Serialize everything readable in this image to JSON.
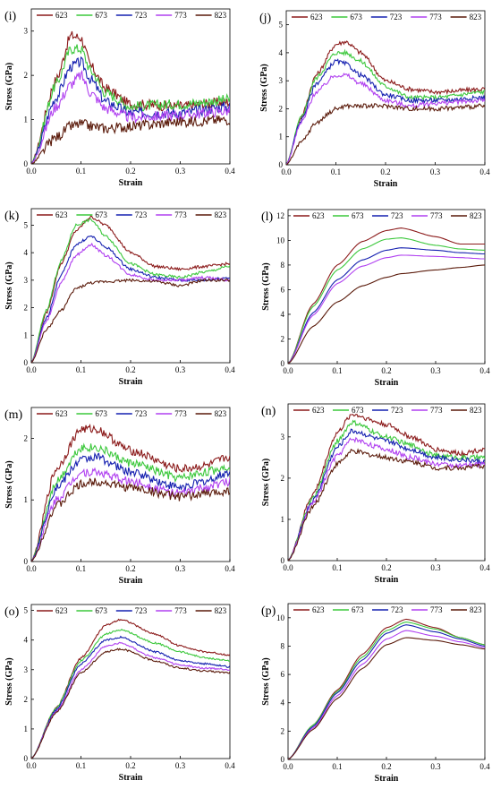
{
  "legend_labels": [
    "623",
    "673",
    "723",
    "773",
    "823"
  ],
  "series_colors": [
    "#8B1A1A",
    "#3CC83C",
    "#1520B0",
    "#B040F0",
    "#5A1A0A"
  ],
  "chart_data": [
    {
      "label": "(i)",
      "type": "line",
      "xlabel": "Strain",
      "ylabel": "Stress (GPa)",
      "xlim": [
        0,
        0.4
      ],
      "ylim": [
        0,
        3.5
      ],
      "xticks": [
        0,
        0.1,
        0.2,
        0.3,
        0.4
      ],
      "yticks": [
        0,
        1,
        2,
        3
      ],
      "noise": 0.12,
      "legend": "top",
      "x": [
        0,
        0.05,
        0.08,
        0.1,
        0.12,
        0.15,
        0.2,
        0.3,
        0.4
      ],
      "series": [
        {
          "name": "623",
          "values": [
            0,
            1.9,
            2.9,
            2.85,
            2.2,
            1.7,
            1.35,
            1.3,
            1.4
          ]
        },
        {
          "name": "673",
          "values": [
            0,
            1.8,
            2.6,
            2.6,
            2.1,
            1.6,
            1.3,
            1.35,
            1.45
          ]
        },
        {
          "name": "723",
          "values": [
            0,
            1.5,
            2.2,
            2.3,
            1.9,
            1.4,
            1.15,
            1.15,
            1.3
          ]
        },
        {
          "name": "773",
          "values": [
            0,
            1.3,
            1.8,
            2.0,
            1.6,
            1.25,
            1.05,
            1.1,
            1.2
          ]
        },
        {
          "name": "823",
          "values": [
            0,
            0.6,
            0.85,
            0.9,
            0.85,
            0.8,
            0.85,
            0.95,
            1.0
          ]
        }
      ]
    },
    {
      "label": "(j)",
      "type": "line",
      "xlabel": "Strain",
      "ylabel": "Stress (GPa)",
      "xlim": [
        0,
        0.4
      ],
      "ylim": [
        0,
        5.5
      ],
      "xticks": [
        0,
        0.1,
        0.2,
        0.3,
        0.4
      ],
      "yticks": [
        0,
        1,
        2,
        3,
        4,
        5
      ],
      "noise": 0.08,
      "legend": "top",
      "x": [
        0,
        0.03,
        0.06,
        0.1,
        0.12,
        0.15,
        0.2,
        0.25,
        0.3,
        0.4
      ],
      "series": [
        {
          "name": "623",
          "values": [
            0,
            1.7,
            3.2,
            4.3,
            4.4,
            4.0,
            3.0,
            2.7,
            2.6,
            2.7
          ]
        },
        {
          "name": "673",
          "values": [
            0,
            1.7,
            3.1,
            4.0,
            4.0,
            3.7,
            2.8,
            2.4,
            2.4,
            2.6
          ]
        },
        {
          "name": "723",
          "values": [
            0,
            1.6,
            2.9,
            3.7,
            3.6,
            3.2,
            2.5,
            2.3,
            2.3,
            2.4
          ]
        },
        {
          "name": "773",
          "values": [
            0,
            1.5,
            2.6,
            3.2,
            3.2,
            2.9,
            2.3,
            2.1,
            2.2,
            2.3
          ]
        },
        {
          "name": "823",
          "values": [
            0,
            0.8,
            1.5,
            2.0,
            2.1,
            2.1,
            2.1,
            2.0,
            2.0,
            2.1
          ]
        }
      ]
    },
    {
      "label": "(k)",
      "type": "line",
      "xlabel": "Strain",
      "ylabel": "Stress (GPa)",
      "xlim": [
        0,
        0.4
      ],
      "ylim": [
        0,
        5.6
      ],
      "xticks": [
        0,
        0.1,
        0.2,
        0.3,
        0.4
      ],
      "yticks": [
        0,
        1,
        2,
        3,
        4,
        5
      ],
      "noise": 0.05,
      "legend": "top",
      "x": [
        0,
        0.03,
        0.06,
        0.09,
        0.12,
        0.15,
        0.2,
        0.25,
        0.3,
        0.35,
        0.4
      ],
      "series": [
        {
          "name": "623",
          "values": [
            0,
            1.8,
            3.6,
            4.8,
            5.3,
            5.0,
            4.0,
            3.5,
            3.4,
            3.5,
            3.6
          ]
        },
        {
          "name": "673",
          "values": [
            0,
            1.9,
            3.7,
            5.0,
            5.2,
            4.6,
            3.6,
            3.2,
            3.1,
            3.3,
            3.5
          ]
        },
        {
          "name": "723",
          "values": [
            0,
            1.6,
            3.2,
            4.3,
            4.6,
            4.2,
            3.4,
            3.1,
            3.0,
            3.0,
            3.1
          ]
        },
        {
          "name": "773",
          "values": [
            0,
            1.5,
            2.9,
            3.9,
            4.3,
            3.9,
            3.2,
            3.0,
            3.0,
            3.1,
            3.0
          ]
        },
        {
          "name": "823",
          "values": [
            0,
            1.2,
            1.9,
            2.7,
            2.9,
            2.95,
            3.0,
            2.95,
            2.8,
            3.0,
            3.0
          ]
        }
      ]
    },
    {
      "label": "(l)",
      "type": "line",
      "xlabel": "Strain",
      "ylabel": "Stress (GPa)",
      "xlim": [
        0,
        0.4
      ],
      "ylim": [
        0,
        12.5
      ],
      "xticks": [
        0,
        0.1,
        0.2,
        0.3,
        0.4
      ],
      "yticks": [
        0,
        2,
        4,
        6,
        8,
        10,
        12
      ],
      "noise": 0,
      "legend": "top",
      "x": [
        0,
        0.05,
        0.1,
        0.15,
        0.2,
        0.23,
        0.3,
        0.35,
        0.4
      ],
      "series": [
        {
          "name": "623",
          "values": [
            0,
            4.8,
            8.0,
            9.9,
            10.8,
            11.0,
            10.3,
            9.7,
            9.7
          ]
        },
        {
          "name": "673",
          "values": [
            0,
            4.6,
            7.6,
            9.3,
            10.1,
            10.2,
            9.6,
            9.3,
            9.2
          ]
        },
        {
          "name": "723",
          "values": [
            0,
            4.1,
            6.8,
            8.4,
            9.2,
            9.4,
            9.2,
            9.0,
            8.9
          ]
        },
        {
          "name": "773",
          "values": [
            0,
            3.9,
            6.5,
            7.9,
            8.6,
            8.8,
            8.7,
            8.6,
            8.5
          ]
        },
        {
          "name": "823",
          "values": [
            0,
            3.0,
            5.0,
            6.3,
            7.0,
            7.3,
            7.6,
            7.8,
            8.0
          ]
        }
      ]
    },
    {
      "label": "(m)",
      "type": "line",
      "xlabel": "Strain",
      "ylabel": "Stress (GPa)",
      "xlim": [
        0,
        0.4
      ],
      "ylim": [
        0,
        2.5
      ],
      "xticks": [
        0,
        0.1,
        0.2,
        0.3,
        0.4
      ],
      "yticks": [
        0,
        1,
        2
      ],
      "noise": 0.07,
      "legend": "top",
      "x": [
        0,
        0.05,
        0.1,
        0.13,
        0.2,
        0.3,
        0.35,
        0.4
      ],
      "series": [
        {
          "name": "623",
          "values": [
            0,
            1.5,
            2.15,
            2.15,
            1.8,
            1.5,
            1.55,
            1.7
          ]
        },
        {
          "name": "673",
          "values": [
            0,
            1.3,
            1.85,
            1.85,
            1.6,
            1.35,
            1.45,
            1.55
          ]
        },
        {
          "name": "723",
          "values": [
            0,
            1.2,
            1.65,
            1.7,
            1.45,
            1.2,
            1.3,
            1.45
          ]
        },
        {
          "name": "773",
          "values": [
            0,
            1.0,
            1.45,
            1.45,
            1.3,
            1.1,
            1.2,
            1.3
          ]
        },
        {
          "name": "823",
          "values": [
            0,
            0.9,
            1.25,
            1.3,
            1.2,
            1.05,
            1.1,
            1.15
          ]
        }
      ]
    },
    {
      "label": "(n)",
      "type": "line",
      "xlabel": "Strain",
      "ylabel": "Stress (GPa)",
      "xlim": [
        0,
        0.4
      ],
      "ylim": [
        0,
        3.8
      ],
      "xticks": [
        0,
        0.1,
        0.2,
        0.3,
        0.4
      ],
      "yticks": [
        0,
        1,
        2,
        3
      ],
      "noise": 0.06,
      "legend": "top",
      "x": [
        0,
        0.05,
        0.1,
        0.13,
        0.2,
        0.25,
        0.3,
        0.35,
        0.4
      ],
      "series": [
        {
          "name": "623",
          "values": [
            0,
            1.6,
            3.1,
            3.55,
            3.3,
            3.0,
            2.7,
            2.6,
            2.7
          ]
        },
        {
          "name": "673",
          "values": [
            0,
            1.5,
            2.9,
            3.35,
            3.0,
            2.8,
            2.55,
            2.5,
            2.5
          ]
        },
        {
          "name": "723",
          "values": [
            0,
            1.45,
            2.75,
            3.15,
            2.9,
            2.7,
            2.5,
            2.45,
            2.4
          ]
        },
        {
          "name": "773",
          "values": [
            0,
            1.4,
            2.55,
            2.95,
            2.7,
            2.5,
            2.35,
            2.3,
            2.35
          ]
        },
        {
          "name": "823",
          "values": [
            0,
            1.3,
            2.35,
            2.65,
            2.5,
            2.4,
            2.25,
            2.25,
            2.3
          ]
        }
      ]
    },
    {
      "label": "(o)",
      "type": "line",
      "xlabel": "Strain",
      "ylabel": "Stress (GPa)",
      "xlim": [
        0,
        0.4
      ],
      "ylim": [
        0,
        5.2
      ],
      "xticks": [
        0,
        0.1,
        0.2,
        0.3,
        0.4
      ],
      "yticks": [
        0,
        1,
        2,
        3,
        4,
        5
      ],
      "noise": 0.03,
      "legend": "top",
      "x": [
        0,
        0.05,
        0.1,
        0.15,
        0.18,
        0.25,
        0.3,
        0.35,
        0.4
      ],
      "series": [
        {
          "name": "623",
          "values": [
            0,
            1.7,
            3.4,
            4.5,
            4.7,
            4.2,
            3.8,
            3.6,
            3.5
          ]
        },
        {
          "name": "673",
          "values": [
            0,
            1.7,
            3.3,
            4.2,
            4.35,
            3.9,
            3.6,
            3.4,
            3.3
          ]
        },
        {
          "name": "723",
          "values": [
            0,
            1.65,
            3.2,
            4.0,
            4.1,
            3.6,
            3.3,
            3.2,
            3.1
          ]
        },
        {
          "name": "773",
          "values": [
            0,
            1.6,
            3.0,
            3.8,
            3.9,
            3.4,
            3.15,
            3.05,
            3.0
          ]
        },
        {
          "name": "823",
          "values": [
            0,
            1.55,
            2.9,
            3.6,
            3.7,
            3.3,
            3.05,
            2.95,
            2.9
          ]
        }
      ]
    },
    {
      "label": "(p)",
      "type": "line",
      "xlabel": "Strain",
      "ylabel": "Stress (GPa)",
      "xlim": [
        0,
        0.4
      ],
      "ylim": [
        0,
        11
      ],
      "xticks": [
        0,
        0.1,
        0.2,
        0.3,
        0.4
      ],
      "yticks": [
        0,
        2,
        4,
        6,
        8,
        10
      ],
      "noise": 0,
      "legend": "top",
      "x": [
        0,
        0.05,
        0.1,
        0.15,
        0.2,
        0.24,
        0.3,
        0.35,
        0.4
      ],
      "series": [
        {
          "name": "623",
          "values": [
            0,
            2.4,
            4.9,
            7.4,
            9.3,
            9.9,
            9.3,
            8.6,
            8.1
          ]
        },
        {
          "name": "673",
          "values": [
            0,
            2.4,
            4.8,
            7.2,
            9.1,
            9.7,
            9.2,
            8.6,
            8.1
          ]
        },
        {
          "name": "723",
          "values": [
            0,
            2.3,
            4.7,
            7.0,
            8.9,
            9.5,
            9.0,
            8.5,
            8.0
          ]
        },
        {
          "name": "773",
          "values": [
            0,
            2.2,
            4.5,
            6.7,
            8.5,
            9.1,
            8.7,
            8.3,
            7.9
          ]
        },
        {
          "name": "823",
          "values": [
            0,
            2.1,
            4.3,
            6.4,
            8.1,
            8.6,
            8.4,
            8.1,
            7.8
          ]
        }
      ]
    }
  ]
}
